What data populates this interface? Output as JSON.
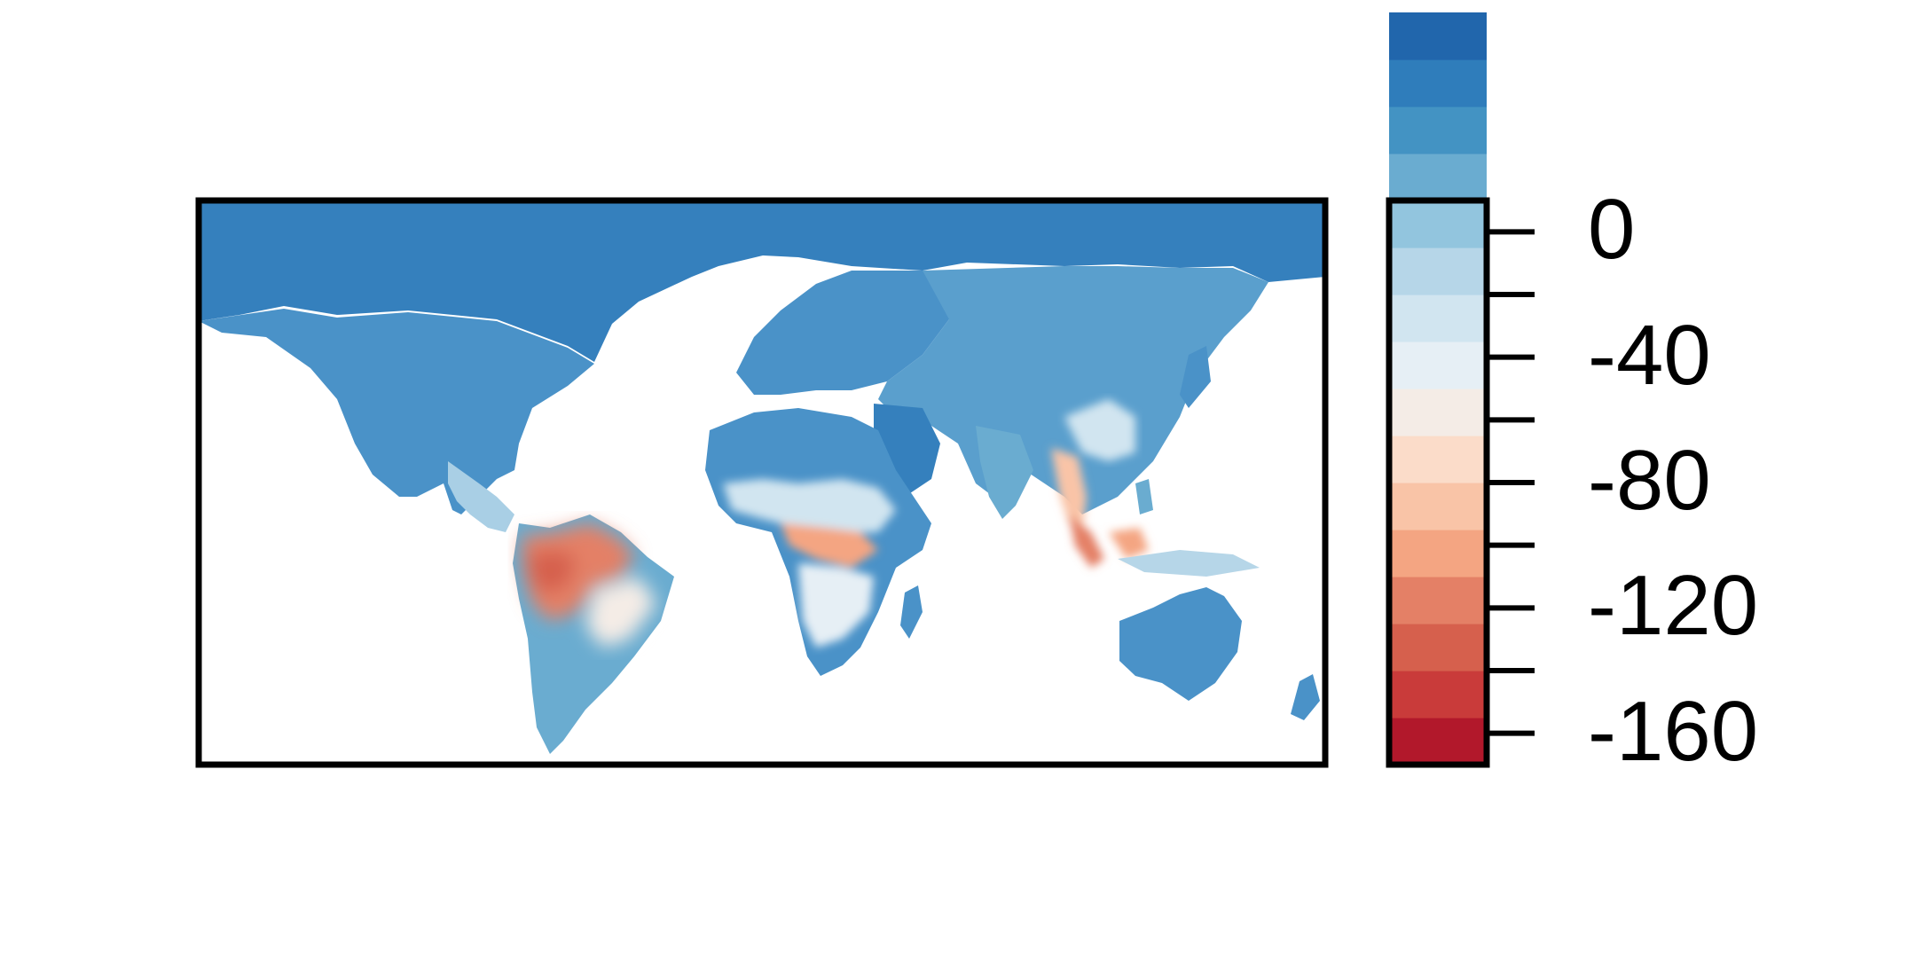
{
  "map": {
    "frame_color": "#000000",
    "ocean_color": "#ffffff",
    "border_color": "#808080"
  },
  "colorbar": {
    "min": -170,
    "max": 10,
    "step": 15,
    "palette": [
      "#b2182b",
      "#c93b3a",
      "#d6604d",
      "#e48066",
      "#f4a582",
      "#f9c4a7",
      "#fbdcc9",
      "#f4ece6",
      "#e6eff5",
      "#d1e5f0",
      "#b6d6e8",
      "#92c5de",
      "#6aacd0",
      "#4393c3",
      "#2f7dbb",
      "#2166ac"
    ],
    "ticks": [
      0,
      -40,
      -80,
      -120,
      -160
    ],
    "minor_ticks": [
      0,
      -20,
      -40,
      -60,
      -80,
      -100,
      -120,
      -140,
      -160
    ],
    "tick_labels": [
      "0",
      "-40",
      "-80",
      "-120",
      "-160"
    ]
  }
}
